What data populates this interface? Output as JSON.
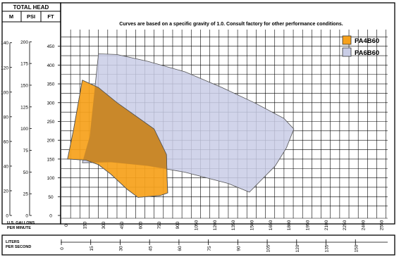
{
  "chart_data": {
    "type": "area",
    "note": "Curves are based on a specific gravity of 1.0. Consult factory for other performance conditions.",
    "head_header": "TOTAL HEAD",
    "head_units": [
      "M",
      "PSI",
      "FT"
    ],
    "gpm_label_lines": [
      "U.S. GALLONS",
      "PER MINUTE"
    ],
    "lps_label_lines": [
      "LITERS",
      "PER SECOND"
    ],
    "xlim": [
      0,
      2650
    ],
    "ylim_ft": [
      0,
      500
    ],
    "x_ticks_gpm": [
      "0",
      "150",
      "300",
      "450",
      "600",
      "750",
      "900",
      "1050",
      "1200",
      "1350",
      "1500",
      "1650",
      "1800",
      "1950",
      "2100",
      "2250",
      "2400",
      "2550"
    ],
    "x_ticks_lps": [
      "0",
      "15",
      "30",
      "45",
      "60",
      "75",
      "90",
      "105",
      "120",
      "135",
      "150"
    ],
    "ft_ticks": [
      "0",
      "50",
      "100",
      "150",
      "200",
      "250",
      "300",
      "350",
      "400",
      "450"
    ],
    "psi_ticks": [
      "0",
      "25",
      "50",
      "75",
      "100",
      "125",
      "150",
      "175",
      "200"
    ],
    "m_ticks": [
      "0",
      "20",
      "40",
      "60",
      "80",
      "100",
      "120",
      "140"
    ],
    "series": [
      {
        "name": "PA6B60",
        "color": "#c9cde6",
        "points": [
          [
            170,
            140
          ],
          [
            230,
            210
          ],
          [
            300,
            430
          ],
          [
            450,
            428
          ],
          [
            700,
            410
          ],
          [
            1000,
            382
          ],
          [
            1300,
            340
          ],
          [
            1560,
            300
          ],
          [
            1800,
            258
          ],
          [
            1880,
            230
          ],
          [
            1820,
            180
          ],
          [
            1730,
            132
          ],
          [
            1520,
            62
          ],
          [
            1350,
            85
          ],
          [
            1000,
            115
          ],
          [
            700,
            132
          ],
          [
            400,
            142
          ],
          [
            170,
            140
          ]
        ]
      },
      {
        "name": "PA4B60",
        "color": "#f6a11c",
        "points": [
          [
            50,
            150
          ],
          [
            100,
            230
          ],
          [
            170,
            360
          ],
          [
            300,
            340
          ],
          [
            450,
            300
          ],
          [
            600,
            265
          ],
          [
            750,
            230
          ],
          [
            850,
            162
          ],
          [
            855,
            100
          ],
          [
            860,
            60
          ],
          [
            800,
            53
          ],
          [
            620,
            48
          ],
          [
            530,
            70
          ],
          [
            400,
            110
          ],
          [
            300,
            135
          ],
          [
            200,
            147
          ],
          [
            50,
            150
          ]
        ]
      }
    ]
  }
}
